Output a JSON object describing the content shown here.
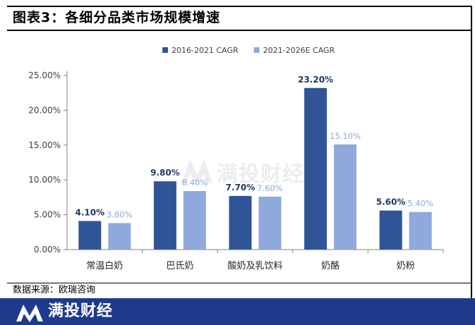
{
  "header": {
    "title": "图表3：各细分品类市场规模增速"
  },
  "source": {
    "text": "数据来源：欧瑞咨询"
  },
  "footer": {
    "brand": "满投财经"
  },
  "watermark": {
    "text": "满投财经"
  },
  "colors": {
    "series1": "#2f5597",
    "series2": "#8fa9dc",
    "footer_bg": "#1f3a8c"
  },
  "chart_data": {
    "type": "bar",
    "categories": [
      "常温白奶",
      "巴氏奶",
      "酸奶及乳饮料",
      "奶酪",
      "奶粉"
    ],
    "series": [
      {
        "name": "2016-2021 CAGR",
        "values": [
          4.1,
          9.8,
          7.7,
          23.2,
          5.6
        ],
        "labels": [
          "4.10%",
          "9.80%",
          "7.70%",
          "23.20%",
          "5.60%"
        ]
      },
      {
        "name": "2021-2026E CAGR",
        "values": [
          3.8,
          8.4,
          7.6,
          15.1,
          5.4
        ],
        "labels": [
          "3.80%",
          "8.40%",
          "7.60%",
          "15.10%",
          "5.40%"
        ]
      }
    ],
    "ylim": [
      0,
      25
    ],
    "yticks": [
      "0.00%",
      "5.00%",
      "10.00%",
      "15.00%",
      "20.00%",
      "25.00%"
    ],
    "ytick_values": [
      0,
      5,
      10,
      15,
      20,
      25
    ],
    "legend_position": "top-center",
    "grid": false
  }
}
